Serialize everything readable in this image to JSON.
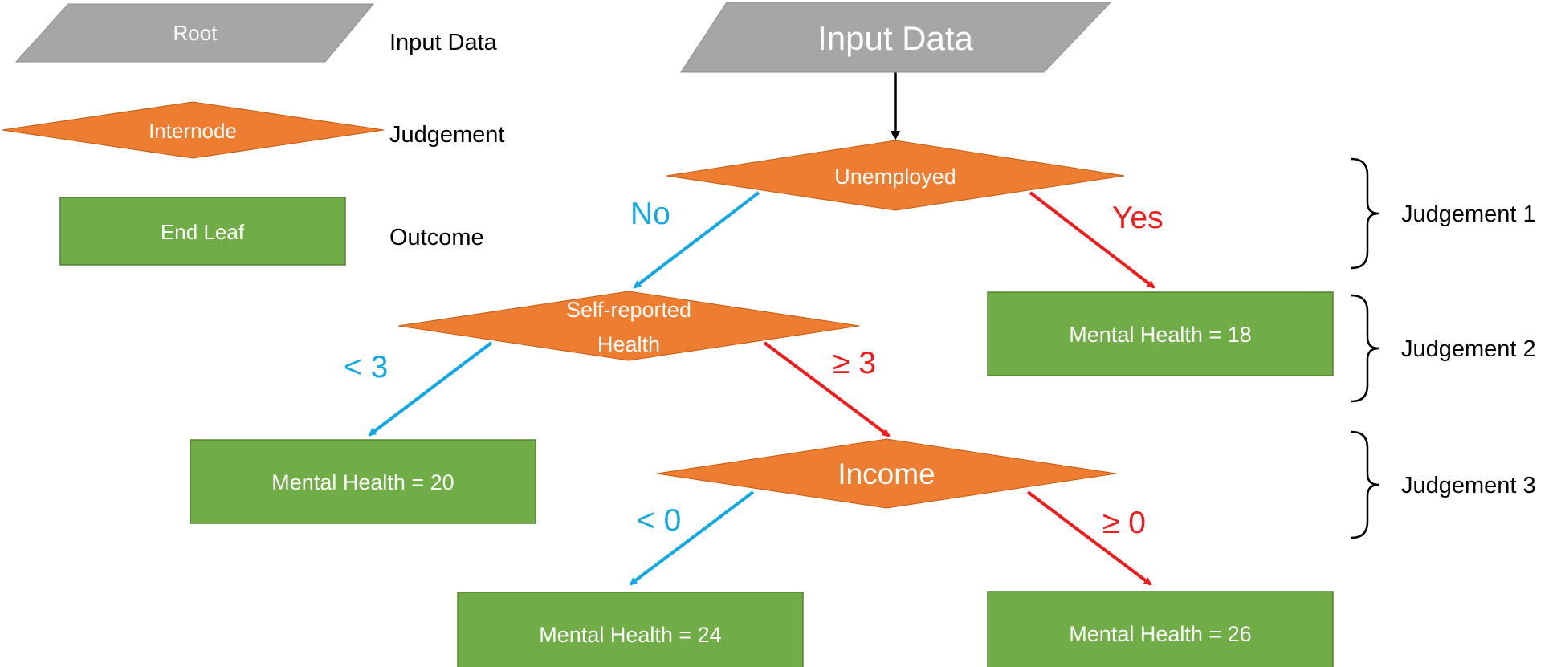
{
  "colors": {
    "root": "#a6a6a6",
    "internode": "#ed7d31",
    "leaf": "#70ad47",
    "leaf_border": "#548235",
    "branch_no": "#12a8e6",
    "branch_yes": "#ee1c1c",
    "connector": "#000000"
  },
  "legend": {
    "root_label": "Root",
    "root_desc": "Input Data",
    "internode_label": "Internode",
    "internode_desc": "Judgement",
    "leaf_label": "End Leaf",
    "leaf_desc": "Outcome"
  },
  "tree": {
    "root": "Input Data",
    "node1": "Unemployed",
    "node1_no": "No",
    "node1_yes": "Yes",
    "leaf_18": "Mental Health = 18",
    "node2_line1": "Self-reported",
    "node2_line2": "Health",
    "node2_left": "< 3",
    "node2_right": "≥ 3",
    "leaf_20": "Mental Health = 20",
    "node3": "Income",
    "node3_left": "< 0",
    "node3_right": "≥ 0",
    "leaf_24": "Mental Health = 24",
    "leaf_26": "Mental Health = 26"
  },
  "levels": {
    "judgement_1": "Judgement 1",
    "judgement_2": "Judgement 2",
    "judgement_3": "Judgement 3"
  }
}
